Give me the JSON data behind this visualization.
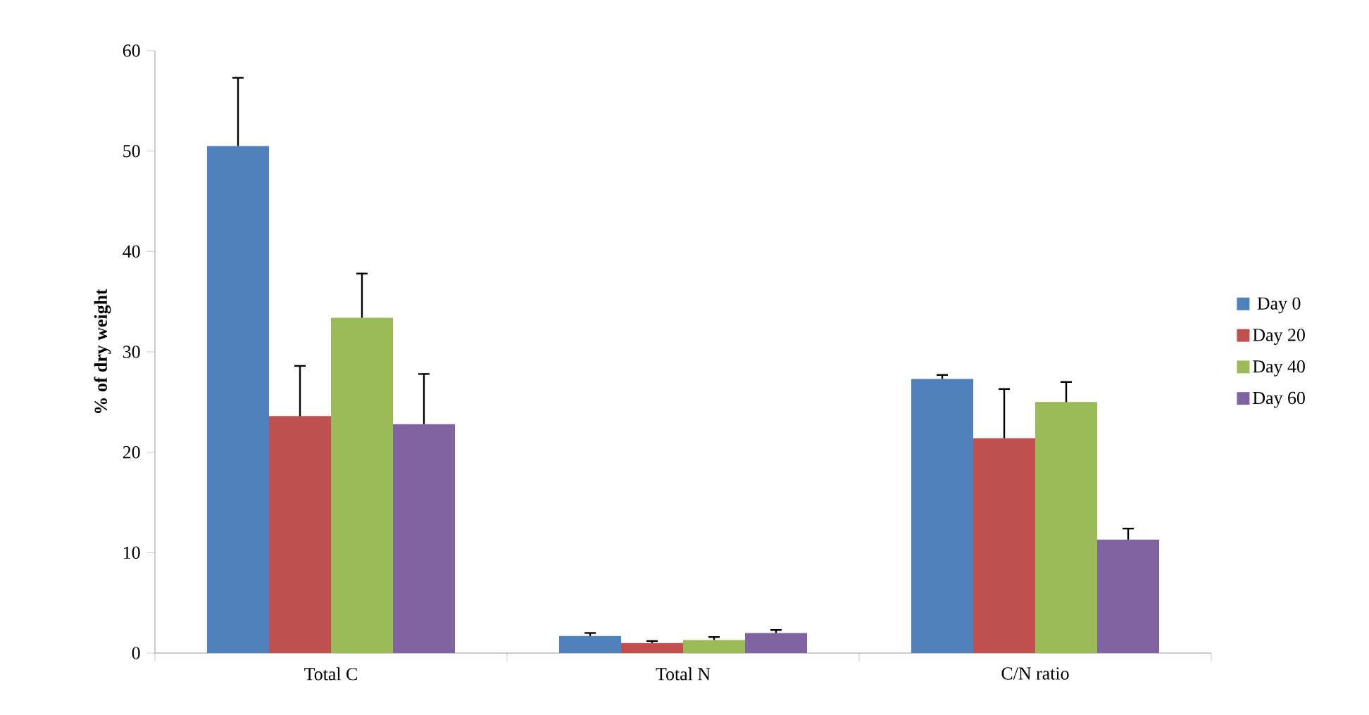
{
  "chart_data": {
    "type": "bar",
    "ylabel": "**% of dry weight**",
    "categories": [
      "Total C",
      "Total N",
      "C/N ratio"
    ],
    "series": [
      {
        "name": "Day 0",
        "color": "#4f81bd",
        "values": [
          50.5,
          1.7,
          27.3
        ],
        "errors": [
          6.8,
          0.3,
          0.4
        ]
      },
      {
        "name": "Day 20",
        "color": "#c0504d",
        "values": [
          23.6,
          1.0,
          21.4
        ],
        "errors": [
          5.0,
          0.2,
          4.9
        ]
      },
      {
        "name": "Day 40",
        "color": "#9bbb59",
        "values": [
          33.4,
          1.3,
          25.0
        ],
        "errors": [
          4.4,
          0.3,
          2.0
        ]
      },
      {
        "name": "Day 60",
        "color": "#8064a2",
        "values": [
          22.8,
          2.0,
          11.3
        ],
        "errors": [
          5.0,
          0.3,
          1.1
        ]
      }
    ],
    "ylim": [
      0,
      60
    ],
    "yticks": [
      0,
      10,
      20,
      30,
      40,
      50,
      60
    ],
    "legend": "right",
    "grid": false
  }
}
